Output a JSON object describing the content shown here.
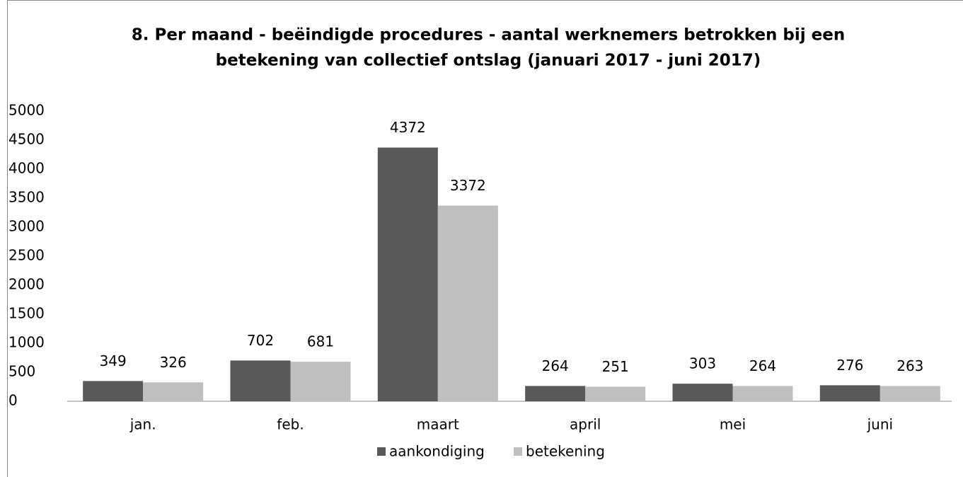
{
  "chart_data": {
    "type": "bar",
    "title": [
      "8. Per maand - beëindigde procedures - aantal werknemers betrokken bij een",
      "betekening van collectief ontslag (januari 2017 - juni 2017)"
    ],
    "categories": [
      "jan.",
      "feb.",
      "maart",
      "april",
      "mei",
      "juni"
    ],
    "series": [
      {
        "name": "aankondiging",
        "color": "#595959",
        "values": [
          349,
          702,
          4372,
          264,
          303,
          276
        ]
      },
      {
        "name": "betekening",
        "color": "#bfbfbf",
        "values": [
          326,
          681,
          3372,
          251,
          264,
          263
        ]
      }
    ],
    "ylim": [
      0,
      5000
    ],
    "yticks": [
      0,
      500,
      1000,
      1500,
      2000,
      2500,
      3000,
      3500,
      4000,
      4500,
      5000
    ],
    "legend": "bottom"
  }
}
